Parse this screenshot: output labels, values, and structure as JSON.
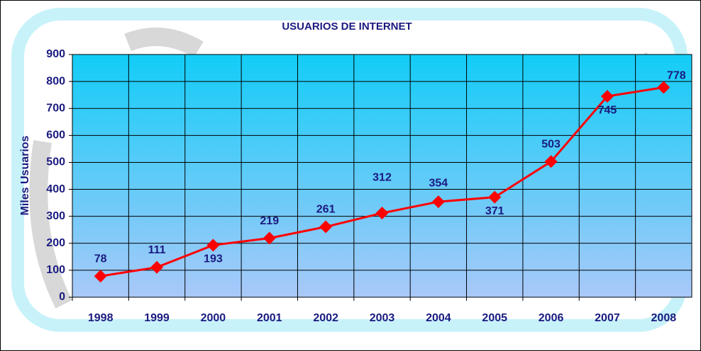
{
  "chart_data": {
    "type": "line",
    "title": "USUARIOS DE INTERNET",
    "y_label": "Miles Usuarios",
    "categories": [
      "1998",
      "1999",
      "2000",
      "2001",
      "2002",
      "2003",
      "2004",
      "2005",
      "2006",
      "2007",
      "2008"
    ],
    "values": [
      78,
      111,
      193,
      219,
      261,
      312,
      354,
      371,
      503,
      745,
      778
    ],
    "color": "#ff0000",
    "label_color": "#1a1a80",
    "ylim": [
      0,
      900
    ],
    "yticks": [
      0,
      100,
      200,
      300,
      400,
      500,
      600,
      700,
      800,
      900
    ],
    "grid": true
  }
}
